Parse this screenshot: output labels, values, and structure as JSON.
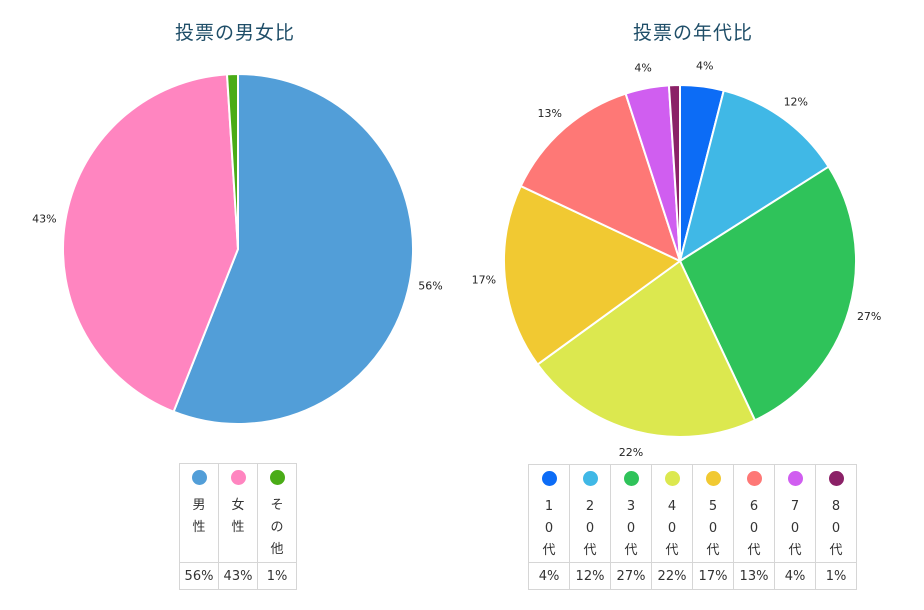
{
  "chart_data": [
    {
      "type": "pie",
      "title": "投票の男女比",
      "slices": [
        {
          "label": "男性",
          "value": 56,
          "display": "56%",
          "color": "#529ed8"
        },
        {
          "label": "女性",
          "value": 43,
          "display": "43%",
          "color": "#ff85c0"
        },
        {
          "label": "その他",
          "value": 1,
          "display": "1%",
          "color": "#4aac17"
        }
      ],
      "legend": "bottom-table"
    },
    {
      "type": "pie",
      "title": "投票の年代比",
      "slices": [
        {
          "label": "10代",
          "value": 4,
          "display": "4%",
          "color": "#0c6cf6"
        },
        {
          "label": "20代",
          "value": 12,
          "display": "12%",
          "color": "#40b8e6"
        },
        {
          "label": "30代",
          "value": 27,
          "display": "27%",
          "color": "#2fc35a"
        },
        {
          "label": "40代",
          "value": 22,
          "display": "22%",
          "color": "#dce84f"
        },
        {
          "label": "50代",
          "value": 17,
          "display": "17%",
          "color": "#f1c932"
        },
        {
          "label": "60代",
          "value": 13,
          "display": "13%",
          "color": "#fe7876"
        },
        {
          "label": "70代",
          "value": 4,
          "display": "4%",
          "color": "#d05ef0"
        },
        {
          "label": "80代",
          "value": 1,
          "display": "1%",
          "color": "#8b2167"
        }
      ],
      "legend": "bottom-table"
    }
  ]
}
